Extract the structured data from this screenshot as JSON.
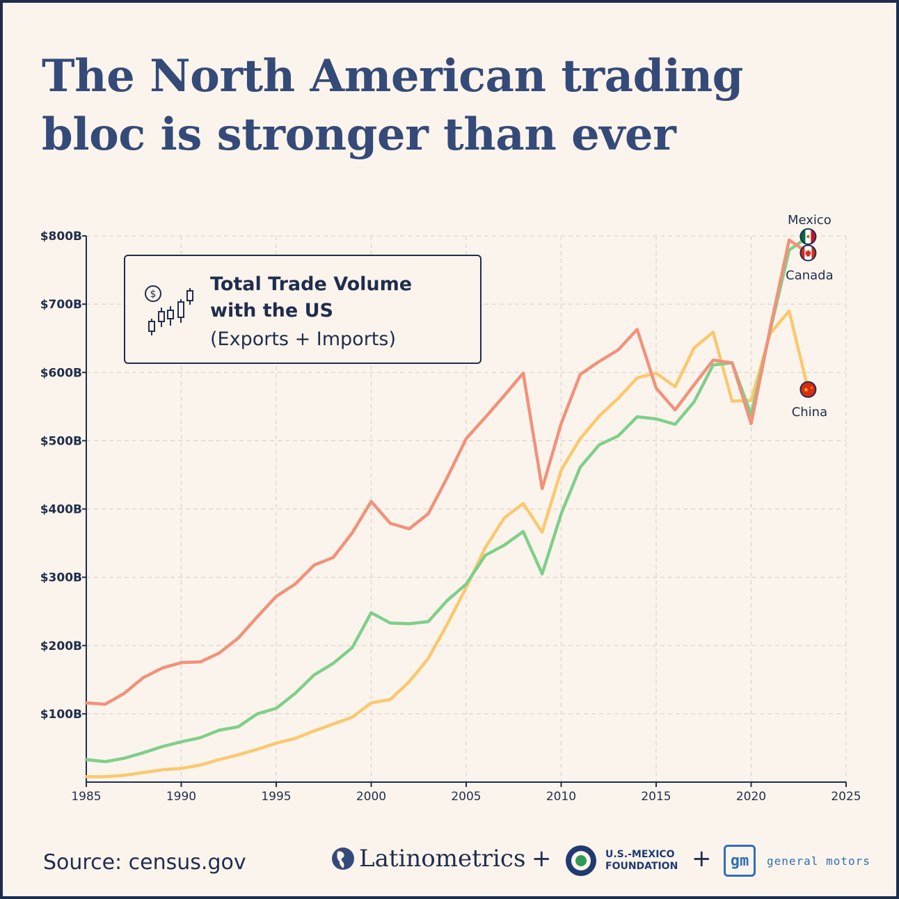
{
  "title_line1": "The North American trading",
  "title_line2": "bloc is stronger than ever",
  "legend": {
    "line1": "Total Trade Volume",
    "line2": "with the US",
    "line3": "(Exports + Imports)"
  },
  "source": "Source: census.gov",
  "brands": {
    "latinometrics": "Latinometrics",
    "usmx_line1": "U.S.-MEXICO",
    "usmx_line2": "FOUNDATION",
    "gm_mark": "gm",
    "gm_text": "general motors",
    "plus": "+"
  },
  "colors": {
    "background": "#fbf4ec",
    "title": "#344a78",
    "text": "#1f2d4d",
    "canada": "#f2917a",
    "mexico": "#7fcf8a",
    "china": "#fbc86e"
  },
  "chart_data": {
    "type": "line",
    "x_range": [
      1985,
      2025
    ],
    "y_range": [
      0,
      800
    ],
    "grid": true,
    "x_ticks": [
      "1985",
      "1990",
      "1995",
      "2000",
      "2005",
      "2010",
      "2015",
      "2020",
      "2025"
    ],
    "y_ticks": [
      {
        "value": 100,
        "label": "$100B"
      },
      {
        "value": 200,
        "label": "$200B"
      },
      {
        "value": 300,
        "label": "$300B"
      },
      {
        "value": 400,
        "label": "$400B"
      },
      {
        "value": 500,
        "label": "$500B"
      },
      {
        "value": 600,
        "label": "$600B"
      },
      {
        "value": 700,
        "label": "$700B"
      },
      {
        "value": 800,
        "label": "$800B"
      }
    ],
    "series": [
      {
        "name": "China",
        "label_position": "below",
        "flag": "china-flag",
        "x": [
          1985,
          1986,
          1987,
          1988,
          1989,
          1990,
          1991,
          1992,
          1993,
          1994,
          1995,
          1996,
          1997,
          1998,
          1999,
          2000,
          2001,
          2002,
          2003,
          2004,
          2005,
          2006,
          2007,
          2008,
          2009,
          2010,
          2011,
          2012,
          2013,
          2014,
          2015,
          2016,
          2017,
          2018,
          2019,
          2020,
          2021,
          2022,
          2023
        ],
        "values": [
          8,
          8,
          10,
          14,
          18,
          20,
          25,
          33,
          40,
          48,
          57,
          64,
          75,
          85,
          95,
          116,
          121,
          147,
          181,
          231,
          285,
          343,
          387,
          408,
          366,
          457,
          503,
          536,
          562,
          592,
          599,
          579,
          636,
          659,
          558,
          559,
          657,
          690,
          575
        ]
      },
      {
        "name": "Mexico",
        "label_position": "above",
        "flag": "mexico-flag",
        "x": [
          1985,
          1986,
          1987,
          1988,
          1989,
          1990,
          1991,
          1992,
          1993,
          1994,
          1995,
          1996,
          1997,
          1998,
          1999,
          2000,
          2001,
          2002,
          2003,
          2004,
          2005,
          2006,
          2007,
          2008,
          2009,
          2010,
          2011,
          2012,
          2013,
          2014,
          2015,
          2016,
          2017,
          2018,
          2019,
          2020,
          2021,
          2022,
          2023
        ],
        "values": [
          33,
          30,
          35,
          43,
          52,
          59,
          65,
          76,
          81,
          100,
          108,
          130,
          157,
          174,
          197,
          248,
          233,
          232,
          235,
          266,
          290,
          332,
          347,
          367,
          305,
          393,
          461,
          494,
          507,
          535,
          532,
          524,
          557,
          611,
          614,
          538,
          661,
          779,
          799
        ]
      },
      {
        "name": "Canada",
        "label_position": "below",
        "flag": "canada-flag",
        "x": [
          1985,
          1986,
          1987,
          1988,
          1989,
          1990,
          1991,
          1992,
          1993,
          1994,
          1995,
          1996,
          1997,
          1998,
          1999,
          2000,
          2001,
          2002,
          2003,
          2004,
          2005,
          2006,
          2007,
          2008,
          2009,
          2010,
          2011,
          2012,
          2013,
          2014,
          2015,
          2016,
          2017,
          2018,
          2019,
          2020,
          2021,
          2022,
          2023
        ],
        "values": [
          116,
          114,
          130,
          153,
          167,
          175,
          176,
          189,
          211,
          242,
          272,
          290,
          318,
          329,
          365,
          411,
          379,
          371,
          393,
          446,
          503,
          534,
          566,
          599,
          430,
          525,
          597,
          616,
          633,
          663,
          577,
          545,
          582,
          618,
          614,
          525,
          664,
          794,
          775
        ]
      }
    ]
  }
}
